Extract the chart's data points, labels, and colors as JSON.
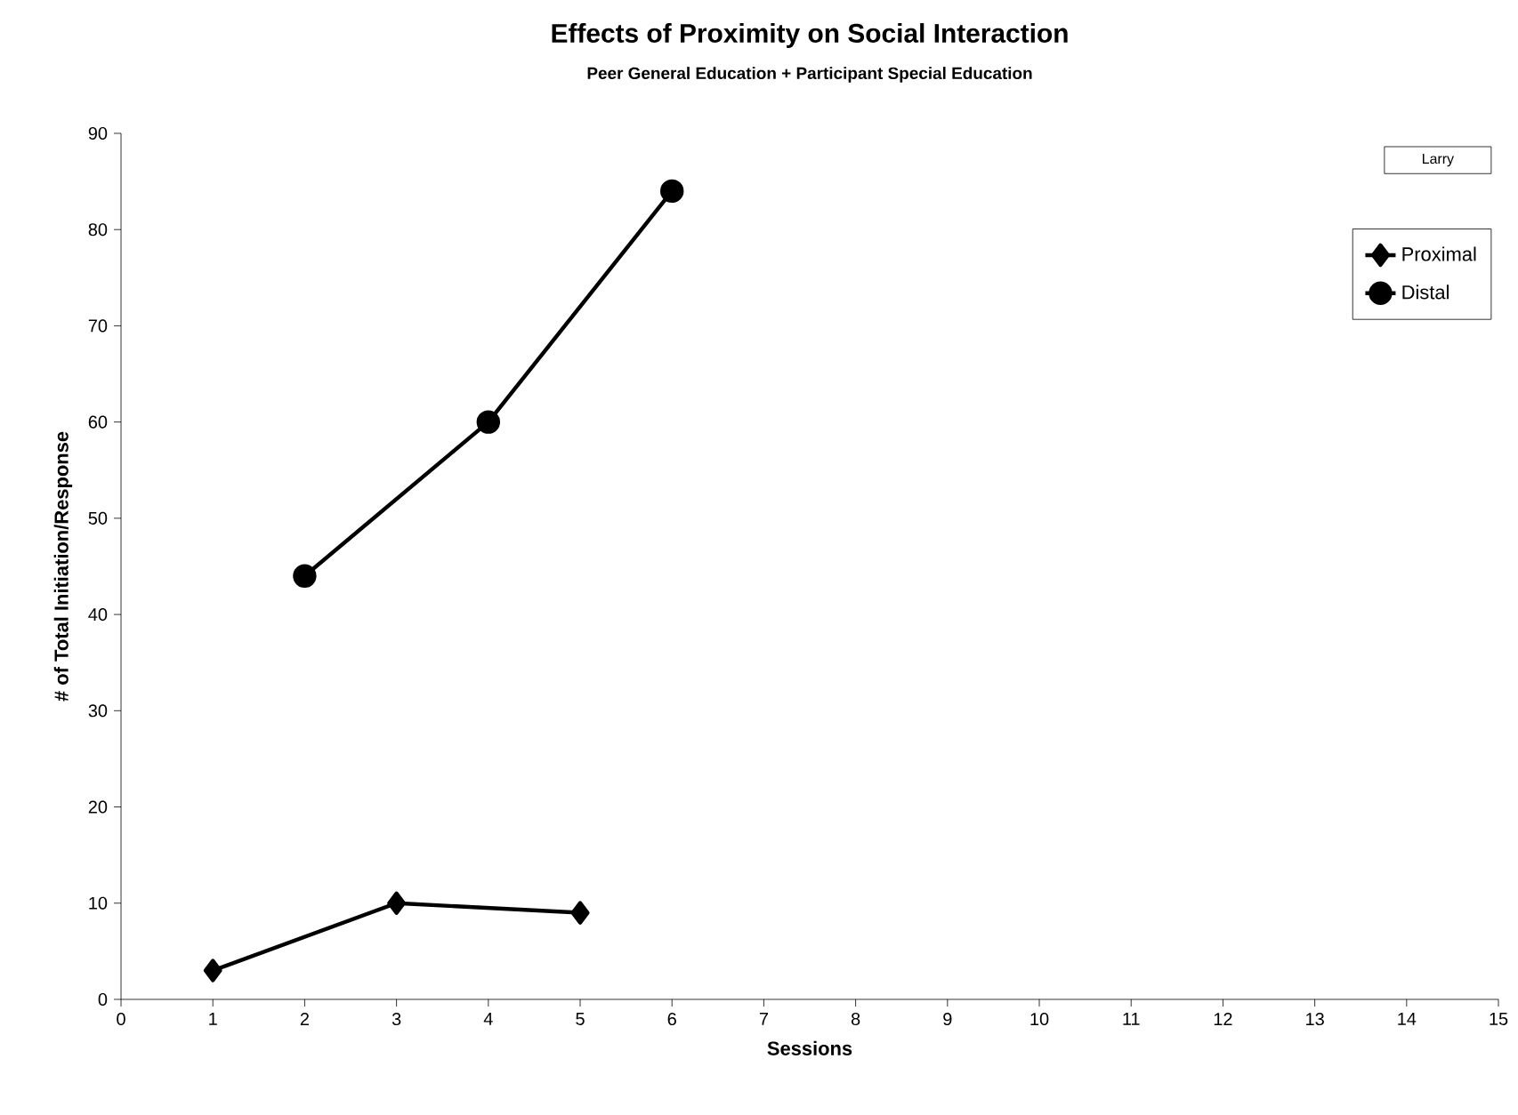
{
  "chart_data": {
    "type": "line",
    "title": "Effects of Proximity on Social Interaction",
    "subtitle": "Peer General Education + Participant Special Education",
    "xlabel": "Sessions",
    "ylabel": "# of Total Initiation/Response",
    "series": [
      {
        "name": "Proximal",
        "color": "#000000",
        "marker": "diamond",
        "x": [
          1,
          3,
          5
        ],
        "values": [
          3,
          10,
          9
        ]
      },
      {
        "name": "Distal",
        "color": "#000000",
        "marker": "circle",
        "x": [
          2,
          4,
          6
        ],
        "values": [
          44,
          60,
          84
        ]
      }
    ],
    "xlim": [
      0,
      15
    ],
    "xticks": [
      0,
      1,
      2,
      3,
      4,
      5,
      6,
      7,
      8,
      9,
      10,
      11,
      12,
      13,
      14,
      15
    ],
    "ylim": [
      0,
      90
    ],
    "yticks": [
      0,
      10,
      20,
      30,
      40,
      50,
      60,
      70,
      80,
      90
    ],
    "annotations": [
      "Larry"
    ],
    "grid": false,
    "legend": "top right",
    "line_style": "solid"
  }
}
